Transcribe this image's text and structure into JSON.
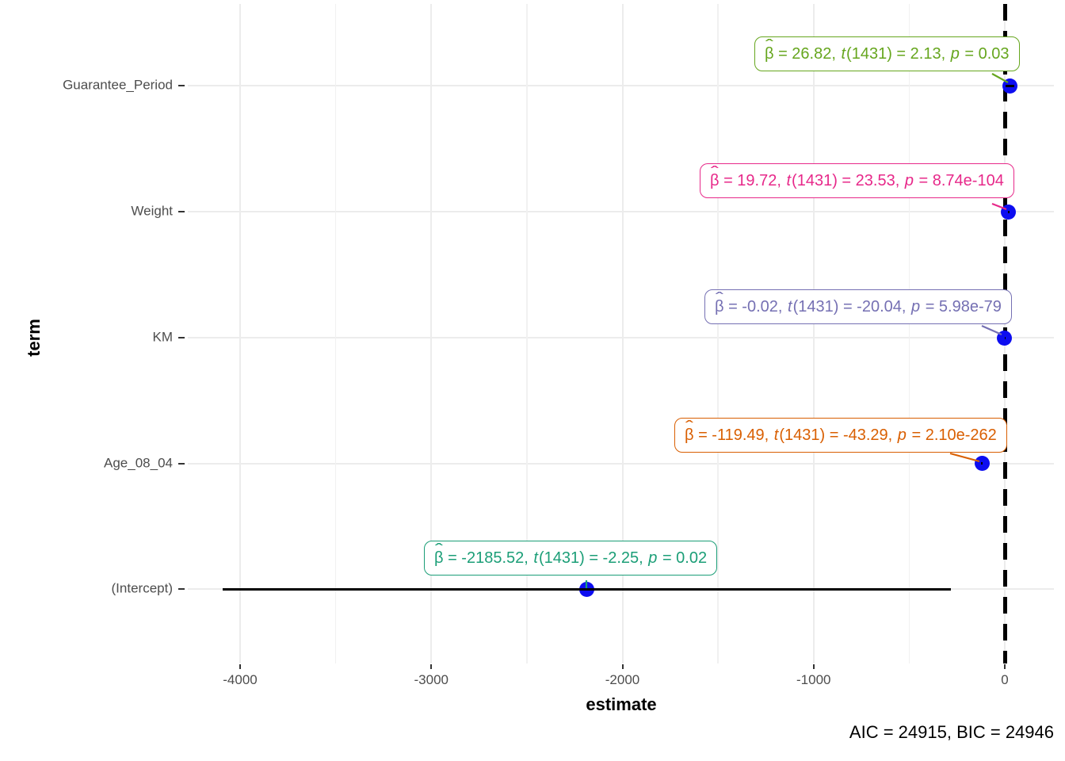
{
  "figure": {
    "x_axis": {
      "title": "estimate"
    },
    "y_axis": {
      "title": "term"
    },
    "caption": "AIC = 24915, BIC = 24946"
  },
  "chart_data": {
    "type": "scatter",
    "subtype": "coefficient-dot-whisker-plot",
    "title": "",
    "xlabel": "estimate",
    "ylabel": "term",
    "xlim": [
      -4300,
      260
    ],
    "x_ticks": [
      -4000,
      -3000,
      -2000,
      -1000,
      0
    ],
    "x_tick_labels": [
      "-4000",
      "-3000",
      "-2000",
      "-1000",
      "0"
    ],
    "x_minor_ticks": [
      -3500,
      -2500,
      -1500,
      -500
    ],
    "grid": true,
    "legend": false,
    "vline_x": 0,
    "point_color": "#0D0DF0",
    "categories": [
      "Guarantee_Period",
      "Weight",
      "KM",
      "Age_08_04",
      "(Intercept)"
    ],
    "terms": [
      {
        "term": "Guarantee_Period",
        "estimate": 26.82,
        "conf_low": 2.1,
        "conf_high": 51.5,
        "df": 1431,
        "t": 2.13,
        "p": "0.03",
        "color": "#66A61E",
        "label": "β̂ = 26.82, t(1431) = 2.13, p = 0.03",
        "segments": [
          [
            "β",
            "hat"
          ],
          [
            " = 26.82, ",
            ""
          ],
          [
            "t",
            "it"
          ],
          [
            "(1431) = 2.13, ",
            ""
          ],
          [
            "p",
            "it"
          ],
          [
            " = 0.03",
            ""
          ]
        ]
      },
      {
        "term": "Weight",
        "estimate": 19.72,
        "conf_low": 18.08,
        "conf_high": 21.36,
        "df": 1431,
        "t": 23.53,
        "p": "8.74e-104",
        "color": "#E7298A",
        "label": "β̂ = 19.72, t(1431) = 23.53, p = 8.74e-104",
        "segments": [
          [
            "β",
            "hat"
          ],
          [
            " = 19.72, ",
            ""
          ],
          [
            "t",
            "it"
          ],
          [
            "(1431) = 23.53, ",
            ""
          ],
          [
            "p",
            "it"
          ],
          [
            " = 8.74e-104",
            ""
          ]
        ]
      },
      {
        "term": "KM",
        "estimate": -0.02,
        "conf_low": -0.022,
        "conf_high": -0.018,
        "df": 1431,
        "t": -20.04,
        "p": "5.98e-79",
        "color": "#7570B3",
        "label": "β̂ = -0.02, t(1431) = -20.04, p = 5.98e-79",
        "segments": [
          [
            "β",
            "hat"
          ],
          [
            " = -0.02, ",
            ""
          ],
          [
            "t",
            "it"
          ],
          [
            "(1431) = -20.04, ",
            ""
          ],
          [
            "p",
            "it"
          ],
          [
            " = 5.98e-79",
            ""
          ]
        ]
      },
      {
        "term": "Age_08_04",
        "estimate": -119.49,
        "conf_low": -124.9,
        "conf_high": -114.1,
        "df": 1431,
        "t": -43.29,
        "p": "2.10e-262",
        "color": "#D95F02",
        "label": "β̂ = -119.49, t(1431) = -43.29, p = 2.10e-262",
        "segments": [
          [
            "β",
            "hat"
          ],
          [
            " = -119.49, ",
            ""
          ],
          [
            "t",
            "it"
          ],
          [
            "(1431) = -43.29, ",
            ""
          ],
          [
            "p",
            "it"
          ],
          [
            " = 2.10e-262",
            ""
          ]
        ]
      },
      {
        "term": "(Intercept)",
        "estimate": -2185.52,
        "conf_low": -4090,
        "conf_high": -281,
        "df": 1431,
        "t": -2.25,
        "p": "0.02",
        "color": "#1B9E77",
        "label": "β̂ = -2185.52, t(1431) = -2.25, p = 0.02",
        "segments": [
          [
            "β",
            "hat"
          ],
          [
            " = -2185.52, ",
            ""
          ],
          [
            "t",
            "it"
          ],
          [
            "(1431) = -2.25, ",
            ""
          ],
          [
            "p",
            "it"
          ],
          [
            " = 0.02",
            ""
          ]
        ]
      }
    ],
    "caption": "AIC = 24915, BIC = 24946"
  }
}
